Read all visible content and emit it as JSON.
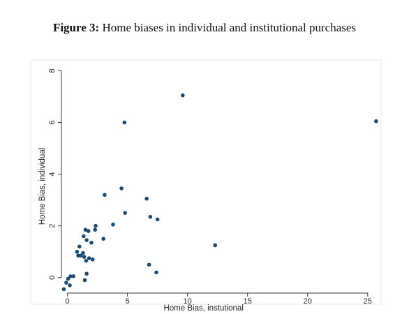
{
  "caption": {
    "label": "Figure 3:",
    "text": "Home biases in individual and institutional purchases"
  },
  "colors": {
    "point": "#1a4a6e",
    "axis": "#333333",
    "frame": "#e6e6e6"
  },
  "chart_data": {
    "type": "scatter",
    "title": "",
    "xlabel": "Home Bias, instutional",
    "ylabel": "Home Bias, individual",
    "xlim": [
      -0.5,
      26
    ],
    "ylim": [
      -0.6,
      8.2
    ],
    "x_ticks": [
      0,
      5,
      10,
      15,
      20,
      25
    ],
    "y_ticks": [
      0,
      2,
      4,
      6,
      8
    ],
    "grid": false,
    "legend": "none",
    "points": [
      {
        "x": -0.3,
        "y": -0.45
      },
      {
        "x": -0.1,
        "y": -0.2
      },
      {
        "x": 0.05,
        "y": -0.05
      },
      {
        "x": 0.2,
        "y": -0.3
      },
      {
        "x": 0.25,
        "y": 0.05
      },
      {
        "x": 0.5,
        "y": 0.05
      },
      {
        "x": 0.8,
        "y": 1.0
      },
      {
        "x": 0.9,
        "y": 0.85
      },
      {
        "x": 1.0,
        "y": 1.2
      },
      {
        "x": 1.1,
        "y": 0.85
      },
      {
        "x": 1.3,
        "y": 0.95
      },
      {
        "x": 1.35,
        "y": 1.6
      },
      {
        "x": 1.4,
        "y": 0.8
      },
      {
        "x": 1.45,
        "y": -0.1
      },
      {
        "x": 1.5,
        "y": 1.85
      },
      {
        "x": 1.55,
        "y": 0.65
      },
      {
        "x": 1.6,
        "y": 1.45
      },
      {
        "x": 1.6,
        "y": 0.15
      },
      {
        "x": 1.75,
        "y": 1.8
      },
      {
        "x": 1.8,
        "y": 0.75
      },
      {
        "x": 2.0,
        "y": 1.35
      },
      {
        "x": 2.1,
        "y": 0.7
      },
      {
        "x": 2.3,
        "y": 1.85
      },
      {
        "x": 2.35,
        "y": 2.0
      },
      {
        "x": 3.0,
        "y": 1.5
      },
      {
        "x": 3.1,
        "y": 3.2
      },
      {
        "x": 3.8,
        "y": 2.05
      },
      {
        "x": 4.5,
        "y": 3.45
      },
      {
        "x": 4.75,
        "y": 6.0
      },
      {
        "x": 4.8,
        "y": 2.5
      },
      {
        "x": 6.6,
        "y": 3.05
      },
      {
        "x": 6.8,
        "y": 0.5
      },
      {
        "x": 6.9,
        "y": 2.35
      },
      {
        "x": 7.4,
        "y": 0.2
      },
      {
        "x": 7.5,
        "y": 2.25
      },
      {
        "x": 9.6,
        "y": 7.05
      },
      {
        "x": 12.3,
        "y": 1.25
      },
      {
        "x": 25.7,
        "y": 6.05
      }
    ]
  }
}
